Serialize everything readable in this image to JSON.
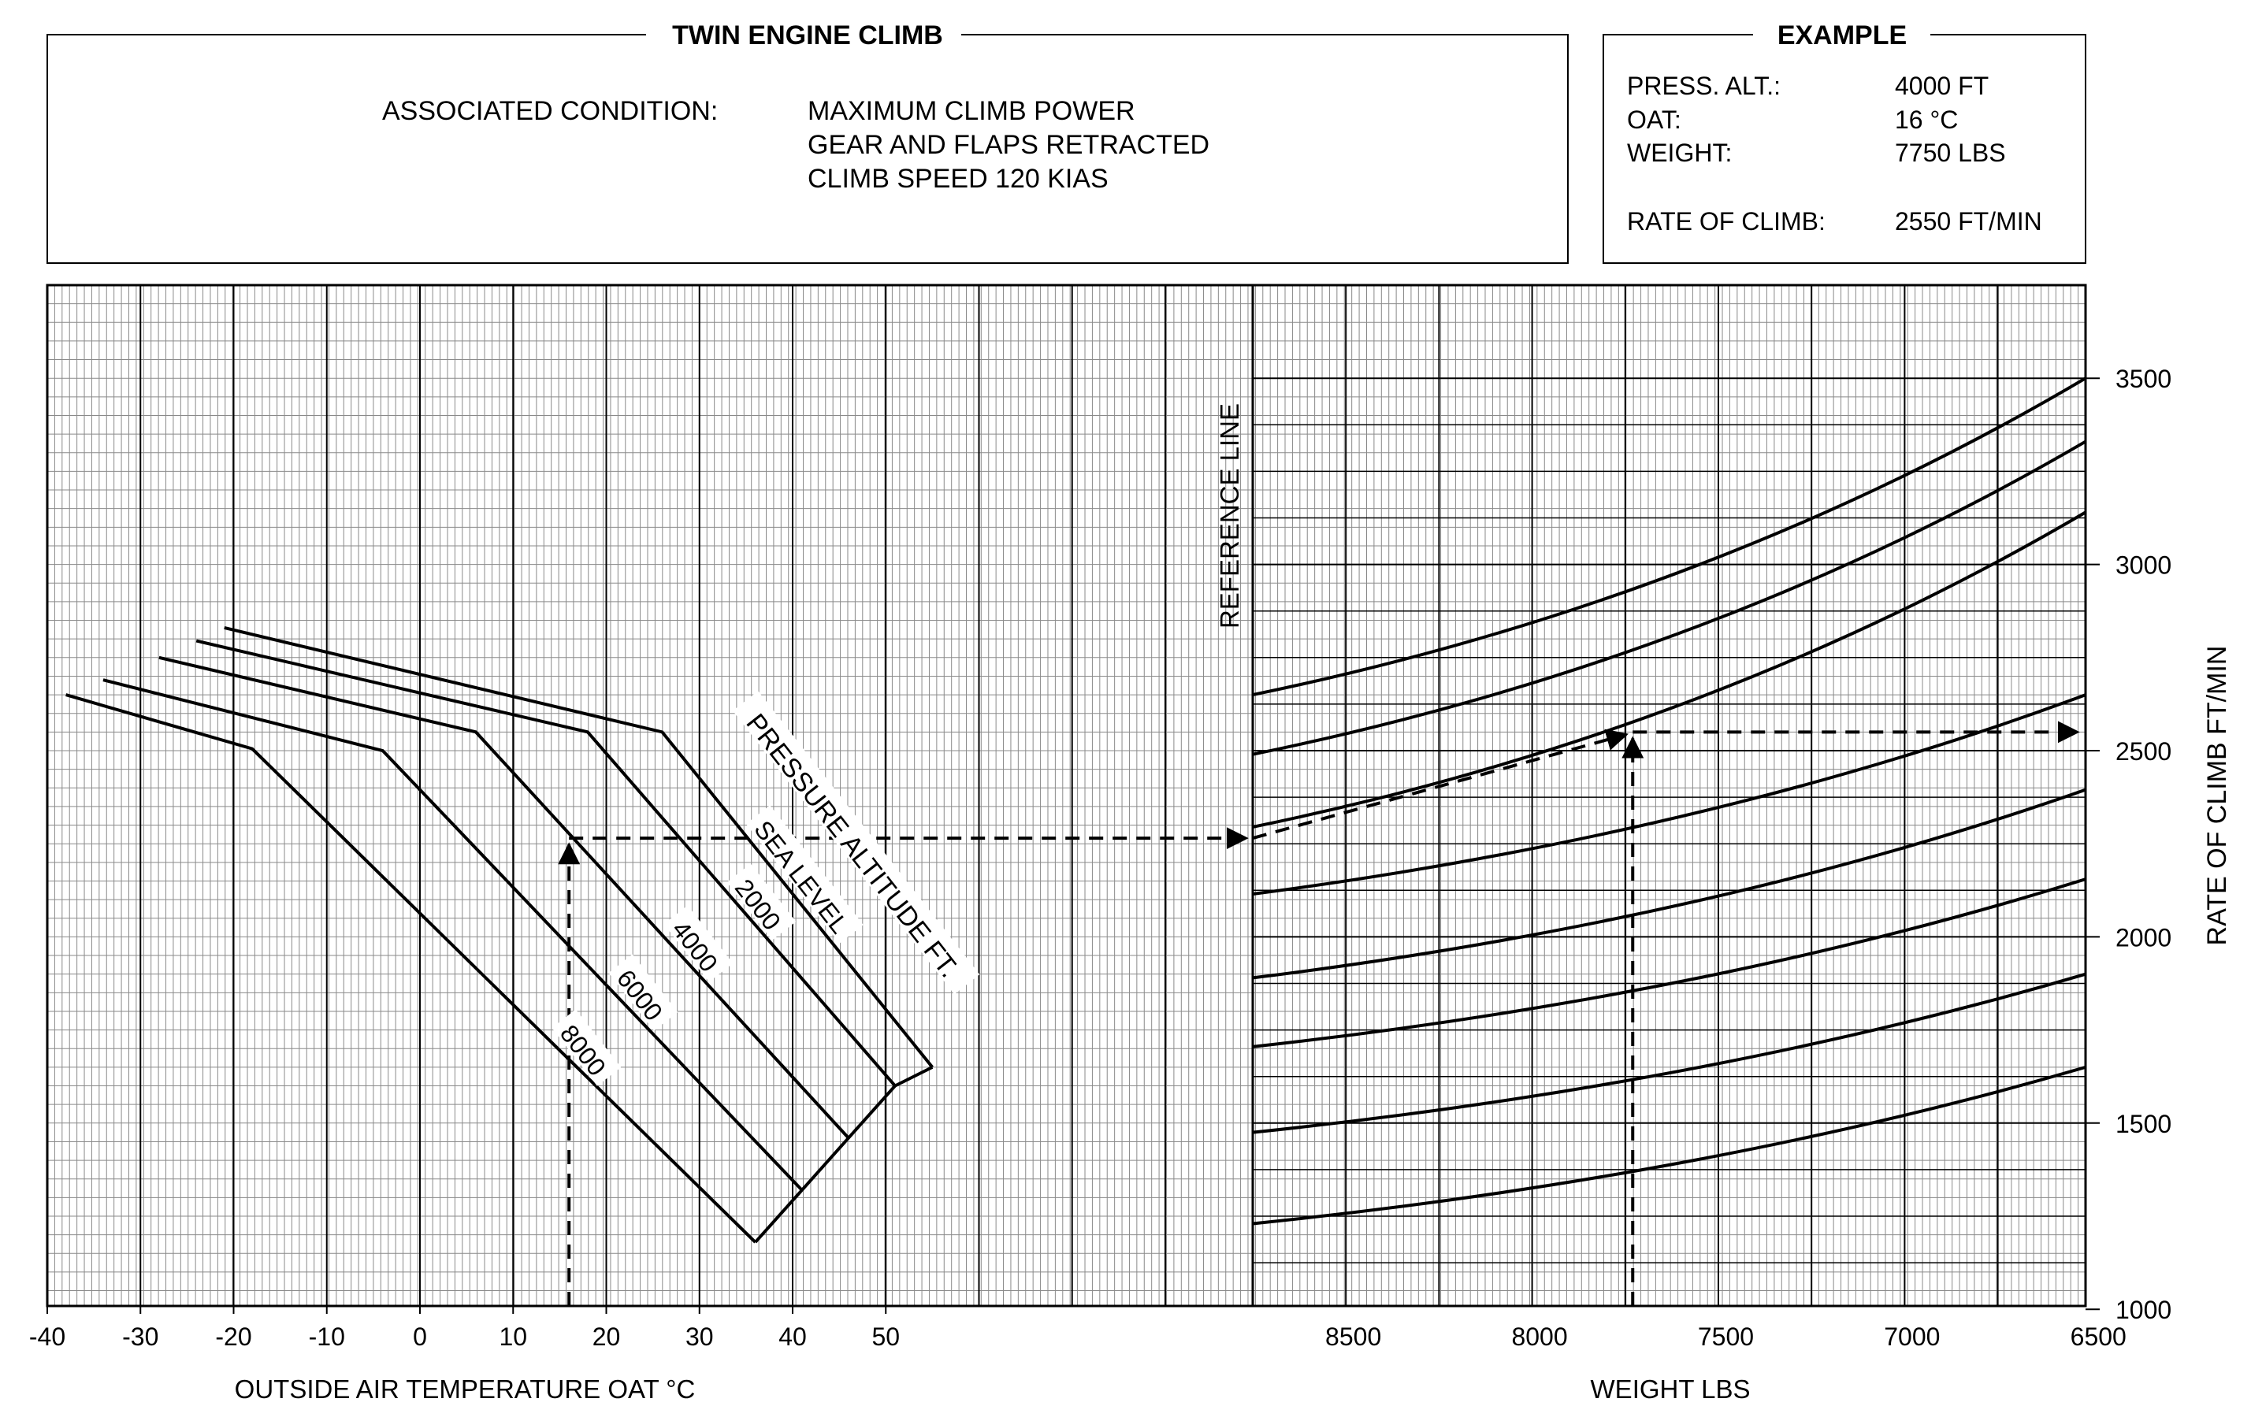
{
  "header": {
    "title": "TWIN ENGINE CLIMB",
    "condition_label": "ASSOCIATED CONDITION:",
    "conditions": [
      "MAXIMUM CLIMB POWER",
      "GEAR AND FLAPS RETRACTED",
      "CLIMB SPEED 120 KIAS"
    ]
  },
  "example": {
    "title": "EXAMPLE",
    "rows": [
      {
        "label": "PRESS. ALT.:",
        "value": "4000 FT"
      },
      {
        "label": "OAT:",
        "value": "16 °C"
      },
      {
        "label": "WEIGHT:",
        "value": "7750 LBS"
      },
      {
        "label": "RATE OF CLIMB:",
        "value": "2550 FT/MIN"
      }
    ]
  },
  "chart_data": {
    "type": "line",
    "title": "TWIN ENGINE CLIMB",
    "left_panel": {
      "xlabel": "OUTSIDE AIR TEMPERATURE OAT °C",
      "xlim": [
        -40,
        90
      ],
      "x_ticks": [
        -40,
        -30,
        -20,
        -10,
        0,
        10,
        20,
        30,
        40,
        50
      ],
      "group_label": "PRESSURE ALTITUDE FT.",
      "series": [
        {
          "name": "SEA LEVEL",
          "points": [
            [
              -21,
              2830
            ],
            [
              26,
              2550
            ],
            [
              55,
              1650
            ]
          ]
        },
        {
          "name": "2000",
          "points": [
            [
              -24,
              2795
            ],
            [
              18,
              2550
            ],
            [
              51,
              1600
            ]
          ]
        },
        {
          "name": "4000",
          "points": [
            [
              -28,
              2750
            ],
            [
              6,
              2550
            ],
            [
              46,
              1460
            ]
          ]
        },
        {
          "name": "6000",
          "points": [
            [
              -34,
              2690
            ],
            [
              -4,
              2500
            ],
            [
              41,
              1320
            ]
          ]
        },
        {
          "name": "8000",
          "points": [
            [
              -38,
              2650
            ],
            [
              -18,
              2505
            ],
            [
              36,
              1180
            ]
          ]
        }
      ],
      "boundary": [
        [
          55,
          1650
        ],
        [
          51,
          1600
        ],
        [
          46,
          1460
        ],
        [
          41,
          1320
        ],
        [
          36,
          1180
        ]
      ]
    },
    "reference_line_label": "REFERENCE LINE",
    "right_panel": {
      "xlabel": "WEIGHT LBS",
      "x_ticks": [
        8500,
        8000,
        7500,
        7000,
        6500
      ],
      "xlim": [
        8770,
        6500
      ],
      "ylabel": "RATE OF CLIMB FT/MIN",
      "ylim": [
        1000,
        3750
      ],
      "y_ticks": [
        1000,
        1500,
        2000,
        2500,
        3000,
        3500
      ],
      "guide_lines": [
        {
          "ref": 2650,
          "end": 3500
        },
        {
          "ref": 2490,
          "end": 3330
        },
        {
          "ref": 2295,
          "end": 3140
        },
        {
          "ref": 2115,
          "end": 2650
        },
        {
          "ref": 1890,
          "end": 2395
        },
        {
          "ref": 1705,
          "end": 2155
        },
        {
          "ref": 1475,
          "end": 1900
        },
        {
          "ref": 1230,
          "end": 1650
        }
      ]
    },
    "example_path": {
      "oat": 16,
      "altitude": "4000",
      "reference_roc": 2265,
      "weight": 7750,
      "rate_of_climb": 2550
    },
    "grid": true
  }
}
